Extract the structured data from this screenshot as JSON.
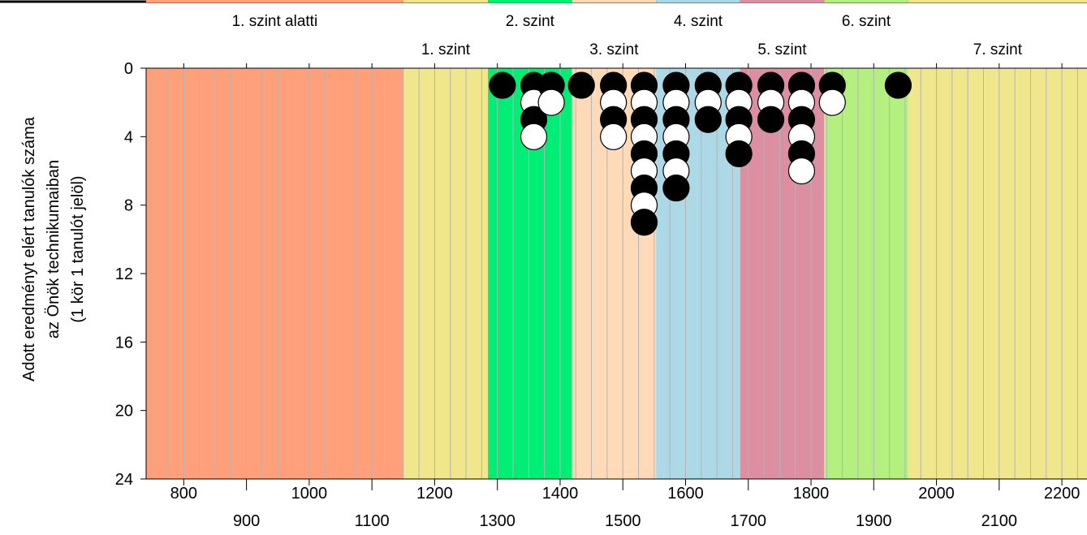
{
  "chart_data": {
    "type": "scatter",
    "style": "dot-plot",
    "ylabel_lines": [
      "Adott eredményt elért tanulók száma",
      "az Önök technikumaiban",
      "(1 kör 1 tanulót jelöl)"
    ],
    "xlim": [
      740,
      2240
    ],
    "ylim": [
      0,
      24
    ],
    "y_inverted": true,
    "x_ticks": [
      800,
      900,
      1000,
      1100,
      1200,
      1300,
      1400,
      1500,
      1600,
      1700,
      1800,
      1900,
      2000,
      2100,
      2200
    ],
    "x_tick_labels": [
      "800",
      "900",
      "1000",
      "1100",
      "1200",
      "1300",
      "1400",
      "1500",
      "1600",
      "1700",
      "1800",
      "1900",
      "2000",
      "2100",
      "2200"
    ],
    "y_ticks": [
      0,
      4,
      8,
      12,
      16,
      20,
      24
    ],
    "y_tick_labels": [
      "0",
      "4",
      "8",
      "12",
      "16",
      "20",
      "24"
    ],
    "vertical_grid": true,
    "grid_step": 25,
    "levels": [
      {
        "name": "1. szint alatti",
        "from": 740,
        "to": 1150,
        "color": "#FFA07A",
        "label_row": 1
      },
      {
        "name": "1. szint",
        "from": 1150,
        "to": 1285,
        "color": "#F0E68C",
        "label_row": 2
      },
      {
        "name": "2. szint",
        "from": 1285,
        "to": 1419,
        "color": "#00EE76",
        "label_row": 1
      },
      {
        "name": "3. szint",
        "from": 1419,
        "to": 1553,
        "color": "#FFDAB9",
        "label_row": 2
      },
      {
        "name": "4. szint",
        "from": 1553,
        "to": 1687,
        "color": "#ADD8E6",
        "label_row": 1
      },
      {
        "name": "5. szint",
        "from": 1687,
        "to": 1821,
        "color": "#DB8FA0",
        "label_row": 2
      },
      {
        "name": "6. szint",
        "from": 1821,
        "to": 1955,
        "color": "#B4F080",
        "label_row": 1
      },
      {
        "name": "7. szint",
        "from": 1955,
        "to": 2240,
        "color": "#F0E68C",
        "label_row": 2
      }
    ],
    "colors": {
      "filled": "#000000",
      "open": "#ffffff"
    },
    "columns": [
      {
        "x": 1308,
        "dots": [
          "black"
        ]
      },
      {
        "x": 1358,
        "dots": [
          "black",
          "white",
          "black",
          "white"
        ]
      },
      {
        "x": 1386,
        "dots": [
          "black",
          "white"
        ]
      },
      {
        "x": 1434,
        "dots": [
          "black"
        ]
      },
      {
        "x": 1485,
        "dots": [
          "black",
          "white",
          "black",
          "white"
        ]
      },
      {
        "x": 1534,
        "dots": [
          "black",
          "white",
          "black",
          "white",
          "black",
          "white",
          "black",
          "white",
          "black"
        ]
      },
      {
        "x": 1585,
        "dots": [
          "black",
          "white",
          "black",
          "white",
          "black",
          "white",
          "black"
        ]
      },
      {
        "x": 1636,
        "dots": [
          "black",
          "white",
          "black"
        ]
      },
      {
        "x": 1685,
        "dots": [
          "black",
          "white",
          "black",
          "white",
          "black"
        ]
      },
      {
        "x": 1736,
        "dots": [
          "black",
          "white",
          "black"
        ]
      },
      {
        "x": 1785,
        "dots": [
          "black",
          "white",
          "black",
          "white",
          "black",
          "white"
        ]
      },
      {
        "x": 1834,
        "dots": [
          "black",
          "white"
        ]
      },
      {
        "x": 1939,
        "dots": [
          "black"
        ]
      }
    ]
  }
}
